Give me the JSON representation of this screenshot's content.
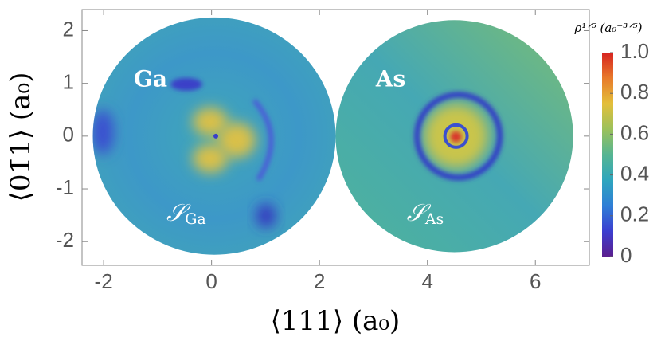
{
  "chart_data": {
    "type": "density-map",
    "xlabel": "⟨111⟩ (a₀)",
    "ylabel": "⟨01̄1⟩ (a₀)",
    "xlim": [
      -2.4,
      7
    ],
    "ylim": [
      -2.45,
      2.4
    ],
    "xticks": [
      -2,
      0,
      2,
      4,
      6
    ],
    "yticks": [
      -2,
      -1,
      0,
      1,
      2
    ],
    "regions": [
      {
        "label": "Ga",
        "symbol": "𝒮",
        "subscript": "Ga",
        "center_x": 0.05,
        "center_y": 0,
        "radius": 2.25
      },
      {
        "label": "As",
        "symbol": "𝒮",
        "subscript": "As",
        "center_x": 4.5,
        "center_y": 0,
        "radius": 2.2
      }
    ],
    "colorbar": {
      "title": "ρ¹ᐟ⁵ (a₀⁻³ᐟ⁵)",
      "lim": [
        0,
        1
      ],
      "ticks": [
        0,
        0.2,
        0.4,
        0.6,
        0.8,
        {
          "value": 1,
          "label": "1.0"
        }
      ],
      "colors": [
        "#5b1f8f",
        "#3b3fd0",
        "#2f7fd6",
        "#2fa6bd",
        "#56b592",
        "#9cc15a",
        "#e3bf3a",
        "#e87a2b",
        "#d62320"
      ]
    }
  }
}
